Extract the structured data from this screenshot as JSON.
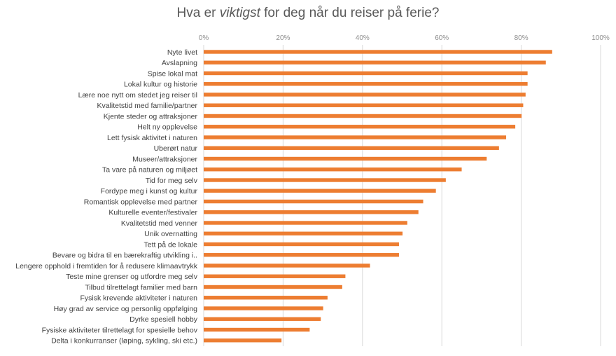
{
  "chart_data": {
    "type": "bar",
    "orientation": "horizontal",
    "title_parts": [
      "Hva er ",
      "viktigst",
      " for deg når du reiser på ferie?"
    ],
    "title": "Hva er viktigst for deg når du reiser på ferie?",
    "xlabel": "",
    "ylabel": "",
    "xlim": [
      0,
      100
    ],
    "x_ticks": [
      "0%",
      "20%",
      "40%",
      "60%",
      "80%",
      "100%"
    ],
    "grid": true,
    "legend": "none",
    "bar_color": "#ED7D31",
    "categories": [
      "Nyte livet",
      "Avslapning",
      "Spise lokal mat",
      "Lokal kultur og historie",
      "Lære noe nytt om stedet jeg reiser til",
      "Kvalitetstid med familie/partner",
      "Kjente steder og attraksjoner",
      "Helt ny opplevelse",
      "Lett fysisk aktivitet i naturen",
      "Uberørt natur",
      "Museer/attraksjoner",
      "Ta vare på naturen og miljøet",
      "Tid for meg selv",
      "Fordype meg i kunst og kultur",
      "Romantisk opplevelse med partner",
      "Kulturelle eventer/festivaler",
      "Kvalitetstid med venner",
      "Unik overnatting",
      "Tett på de lokale",
      "Bevare og bidra til en bærekraftig utvikling i..",
      "Lengere opphold i fremtiden for å redusere klimaavtrykk",
      "Teste mine grenser og utfordre meg selv",
      "Tilbud tilrettelagt familier med barn",
      "Fysisk krevende aktiviteter i naturen",
      "Høy grad av service og personlig oppfølging",
      "Dyrke spesiell hobby",
      "Fysiske aktiviteter tilrettelagt for spesielle behov",
      "Delta i konkurranser (løping, sykling, ski etc.)"
    ],
    "values": [
      87.8,
      86.2,
      81.6,
      81.6,
      81.1,
      80.5,
      80.1,
      78.5,
      76.2,
      74.4,
      71.3,
      65.0,
      61.0,
      58.5,
      55.3,
      54.1,
      51.3,
      50.1,
      49.2,
      49.2,
      41.9,
      35.7,
      34.9,
      31.2,
      30.1,
      29.5,
      26.7,
      19.6
    ]
  }
}
